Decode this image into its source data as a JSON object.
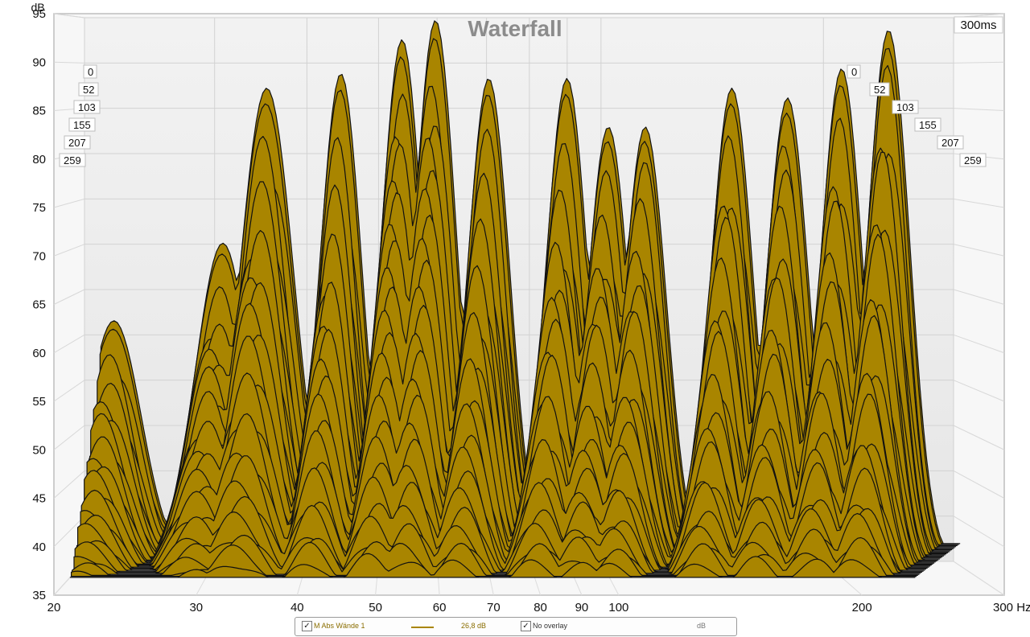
{
  "chart_data": {
    "type": "area",
    "subtype": "waterfall-3d",
    "title": "Waterfall",
    "xlabel": "Hz",
    "ylabel": "dB",
    "x_scale": "log",
    "xlim": [
      20,
      300
    ],
    "ylim": [
      35,
      95
    ],
    "x_ticks": [
      20,
      30,
      40,
      50,
      60,
      70,
      80,
      90,
      100,
      200,
      300
    ],
    "x_tick_labels": [
      "20",
      "30",
      "40",
      "50",
      "60",
      "70",
      "80",
      "90",
      "100",
      "200",
      "300 Hz"
    ],
    "y_ticks": [
      35,
      40,
      45,
      50,
      55,
      60,
      65,
      70,
      75,
      80,
      85,
      90,
      95
    ],
    "time_axis_label": "300ms",
    "time_slices_ms": [
      0,
      52,
      103,
      155,
      207,
      259
    ],
    "fill_color": "#a98500",
    "line_color": "#111111",
    "grid": true,
    "front_slice_peaks": [
      {
        "hz": 22,
        "db": 60
      },
      {
        "hz": 30,
        "db": 68
      },
      {
        "hz": 34,
        "db": 84
      },
      {
        "hz": 42,
        "db": 85.5
      },
      {
        "hz": 50,
        "db": 89
      },
      {
        "hz": 55,
        "db": 91
      },
      {
        "hz": 64,
        "db": 85
      },
      {
        "hz": 80,
        "db": 85
      },
      {
        "hz": 90,
        "db": 80
      },
      {
        "hz": 100,
        "db": 80
      },
      {
        "hz": 128,
        "db": 84
      },
      {
        "hz": 150,
        "db": 83
      },
      {
        "hz": 175,
        "db": 86
      },
      {
        "hz": 200,
        "db": 90
      }
    ]
  },
  "legend": {
    "series_name": "M Abs Wände 1",
    "level": "26,8 dB",
    "overlay_label": "No overlay",
    "unit": "dB",
    "series_checked": true,
    "overlay_checked": true
  }
}
